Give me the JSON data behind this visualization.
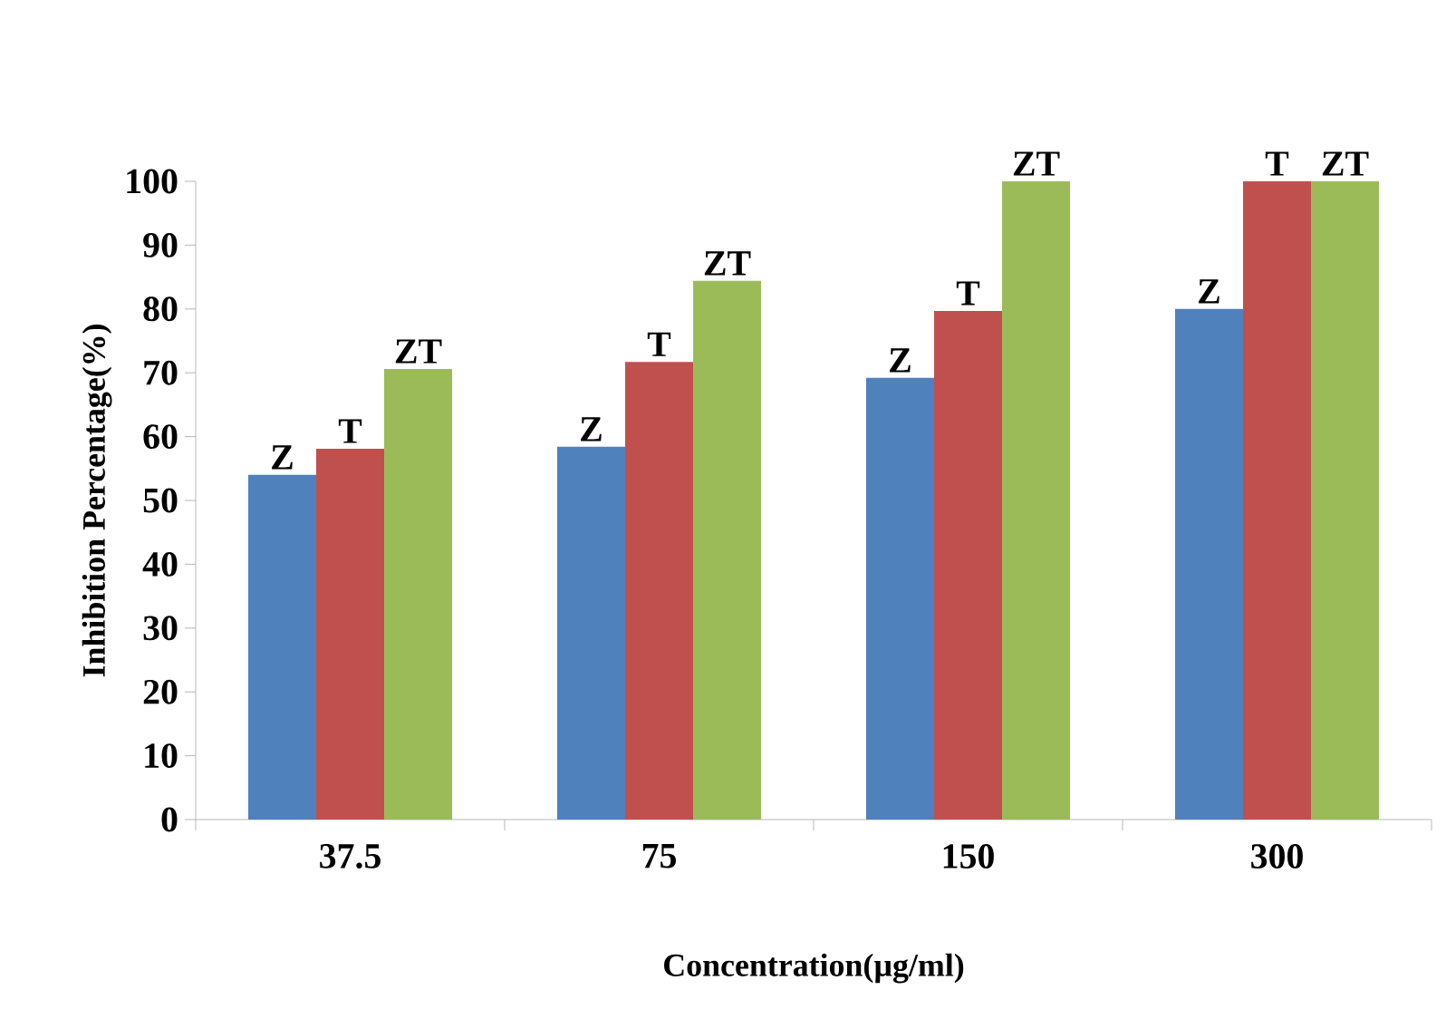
{
  "chart_data": {
    "type": "bar",
    "xlabel": "Concentration(µg/ml)",
    "ylabel": "Inhibition Percentage(%)",
    "categories": [
      "37.5",
      "75",
      "150",
      "300"
    ],
    "series": [
      {
        "name": "Z",
        "color": "#4f81bd",
        "values": [
          54,
          58.4,
          69.2,
          80
        ]
      },
      {
        "name": "T",
        "color": "#c0504d",
        "values": [
          58.1,
          71.7,
          79.7,
          100
        ]
      },
      {
        "name": "ZT",
        "color": "#9bbb59",
        "values": [
          70.6,
          84.4,
          100,
          100
        ]
      }
    ],
    "ylim": [
      0,
      100
    ],
    "yticks": [
      0,
      10,
      20,
      30,
      40,
      50,
      60,
      70,
      80,
      90,
      100
    ]
  }
}
